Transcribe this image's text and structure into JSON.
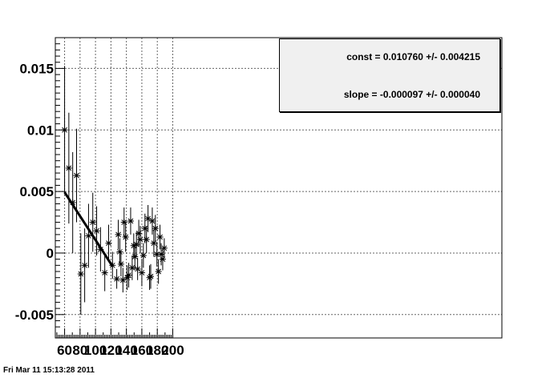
{
  "timestamp": "Fri Mar 11 15:13:28 2011",
  "stats": {
    "const": "const = 0.010760 +/- 0.004215",
    "slope": "slope = -0.000097 +/- 0.000040"
  },
  "chart_data": {
    "type": "scatter",
    "title": "",
    "xlabel": "",
    "ylabel": "",
    "xlim": [
      48,
      626
    ],
    "ylim": [
      -0.0069,
      0.0175
    ],
    "grid": true,
    "x_ticks": [
      60,
      80,
      100,
      120,
      140,
      160,
      180,
      200
    ],
    "y_ticks": [
      -0.005,
      0,
      0.005,
      0.01,
      0.015
    ],
    "x_tick_labels": [
      "60",
      "80",
      "100",
      "120",
      "140",
      "160",
      "180",
      "200"
    ],
    "y_tick_labels": [
      "-0.005",
      "0",
      "0.005",
      "0.01",
      "0.015"
    ],
    "marker": "asterisk",
    "points": [
      {
        "x": 60,
        "y": 0.01,
        "err": 0.0052
      },
      {
        "x": 65.5,
        "y": 0.0069,
        "err": 0.0045
      },
      {
        "x": 70.5,
        "y": 0.0041,
        "err": 0.0041
      },
      {
        "x": 75.5,
        "y": 0.0063,
        "err": 0.0038
      },
      {
        "x": 81,
        "y": -0.0017,
        "err": 0.0033
      },
      {
        "x": 86,
        "y": -0.001,
        "err": 0.003
      },
      {
        "x": 91,
        "y": 0.0014,
        "err": 0.0026
      },
      {
        "x": 96.5,
        "y": 0.0025,
        "err": 0.0024
      },
      {
        "x": 101.5,
        "y": 0.0018,
        "err": 0.002
      },
      {
        "x": 106.5,
        "y": 0.0003,
        "err": 0.0018
      },
      {
        "x": 112,
        "y": -0.0016,
        "err": 0.0015
      },
      {
        "x": 117,
        "y": 0.0008,
        "err": 0.0015
      },
      {
        "x": 122,
        "y": -0.001,
        "err": 0.0011
      },
      {
        "x": 127.5,
        "y": -0.0021,
        "err": 0.0008
      },
      {
        "x": 129.5,
        "y": 0.0015,
        "err": 0.0012
      },
      {
        "x": 131.5,
        "y": 0.0001,
        "err": 0.0011
      },
      {
        "x": 133,
        "y": -0.0009,
        "err": 0.001
      },
      {
        "x": 135.5,
        "y": -0.0022,
        "err": 0.001
      },
      {
        "x": 137,
        "y": 0.0025,
        "err": 0.0012
      },
      {
        "x": 139,
        "y": 0.0013,
        "err": 0.0012
      },
      {
        "x": 141,
        "y": -0.002,
        "err": 0.001
      },
      {
        "x": 143,
        "y": -0.0018,
        "err": 0.001
      },
      {
        "x": 145.5,
        "y": 0.0026,
        "err": 0.0011
      },
      {
        "x": 147.5,
        "y": -0.0012,
        "err": 0.001
      },
      {
        "x": 149.5,
        "y": 0.0006,
        "err": 0.001
      },
      {
        "x": 151,
        "y": -0.0003,
        "err": 0.001
      },
      {
        "x": 153,
        "y": 0.0007,
        "err": 0.001
      },
      {
        "x": 154.5,
        "y": -0.0013,
        "err": 0.0009
      },
      {
        "x": 156,
        "y": 0.0016,
        "err": 0.0011
      },
      {
        "x": 158,
        "y": 0.0011,
        "err": 0.0011
      },
      {
        "x": 160,
        "y": -0.0016,
        "err": 0.0011
      },
      {
        "x": 162,
        "y": -0.0002,
        "err": 0.001
      },
      {
        "x": 164,
        "y": 0.002,
        "err": 0.0012
      },
      {
        "x": 166,
        "y": 0.0011,
        "err": 0.0011
      },
      {
        "x": 168,
        "y": 0.0028,
        "err": 0.0011
      },
      {
        "x": 170,
        "y": -0.002,
        "err": 0.001
      },
      {
        "x": 171.5,
        "y": -0.0019,
        "err": 0.001
      },
      {
        "x": 173.5,
        "y": 0.0026,
        "err": 0.0011
      },
      {
        "x": 175.5,
        "y": 0.0008,
        "err": 0.0011
      },
      {
        "x": 177.5,
        "y": 0.002,
        "err": 0.0011
      },
      {
        "x": 179.5,
        "y": -0.0001,
        "err": 0.001
      },
      {
        "x": 181.5,
        "y": -0.0015,
        "err": 0.001
      },
      {
        "x": 183.5,
        "y": 0.0013,
        "err": 0.001
      },
      {
        "x": 185,
        "y": -0.0001,
        "err": 0.0009
      },
      {
        "x": 187,
        "y": -0.0005,
        "err": 0.0009
      },
      {
        "x": 189,
        "y": 0.0004,
        "err": 0.0008
      }
    ],
    "fit": {
      "intercept": 0.01076,
      "slope": -9.7e-05,
      "x_range": [
        60,
        122
      ]
    }
  }
}
